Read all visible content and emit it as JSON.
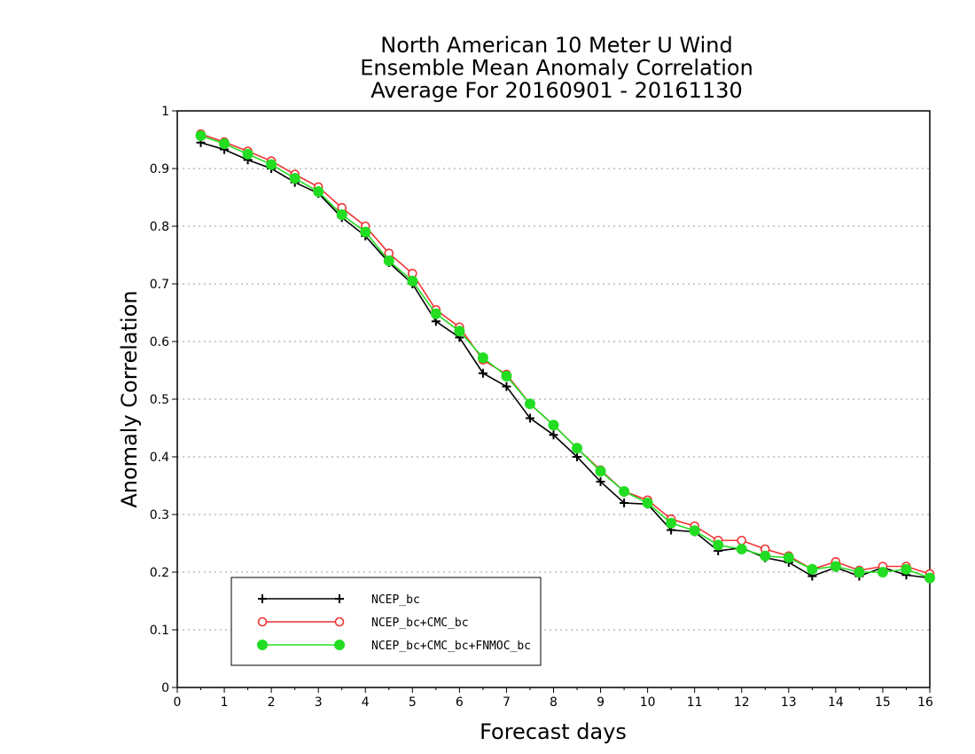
{
  "chart_data": {
    "type": "line",
    "title": [
      "North American 10 Meter U Wind",
      "Ensemble Mean Anomaly Correlation",
      "Average For 20160901 - 20161130"
    ],
    "xlabel": "Forecast days",
    "ylabel": "Anomaly Correlation",
    "xlim": [
      0,
      16
    ],
    "ylim": [
      0,
      1
    ],
    "xticks": [
      0,
      1,
      2,
      3,
      4,
      5,
      6,
      7,
      8,
      9,
      10,
      11,
      12,
      13,
      14,
      15,
      16
    ],
    "yticks": [
      0,
      0.1,
      0.2,
      0.3,
      0.4,
      0.5,
      0.6,
      0.7,
      0.8,
      0.9,
      1
    ],
    "ytick_labels": [
      "0",
      "0.1",
      "0.2",
      "0.3",
      "0.4",
      "0.5",
      "0.6",
      "0.7",
      "0.8",
      "0.9",
      "1"
    ],
    "grid": "horizontal dotted",
    "legend_position": "bottom-left",
    "x": [
      0.5,
      1,
      1.5,
      2,
      2.5,
      3,
      3.5,
      4,
      4.5,
      5,
      5.5,
      6,
      6.5,
      7,
      7.5,
      8,
      8.5,
      9,
      9.5,
      10,
      10.5,
      11,
      11.5,
      12,
      12.5,
      13,
      13.5,
      14,
      14.5,
      15,
      15.5,
      16
    ],
    "series": [
      {
        "name": "NCEP_bc",
        "color": "#000000",
        "marker": "plus",
        "values": [
          0.945,
          0.933,
          0.915,
          0.9,
          0.876,
          0.857,
          0.815,
          0.783,
          0.737,
          0.7,
          0.635,
          0.607,
          0.545,
          0.522,
          0.467,
          0.438,
          0.4,
          0.357,
          0.32,
          0.318,
          0.273,
          0.27,
          0.237,
          0.242,
          0.225,
          0.217,
          0.193,
          0.208,
          0.193,
          0.208,
          0.195,
          0.19
        ]
      },
      {
        "name": "NCEP_bc+CMC_bc",
        "color": "#ee3333",
        "marker": "open-circle",
        "values": [
          0.96,
          0.946,
          0.93,
          0.913,
          0.89,
          0.868,
          0.832,
          0.8,
          0.753,
          0.718,
          0.655,
          0.625,
          0.568,
          0.543,
          0.492,
          0.455,
          0.415,
          0.377,
          0.34,
          0.325,
          0.292,
          0.28,
          0.255,
          0.255,
          0.24,
          0.228,
          0.205,
          0.218,
          0.203,
          0.21,
          0.21,
          0.197
        ]
      },
      {
        "name": "NCEP_bc+CMC_bc+FNMOC_bc",
        "color": "#22dd22",
        "marker": "filled-circle",
        "values": [
          0.957,
          0.943,
          0.925,
          0.907,
          0.883,
          0.86,
          0.82,
          0.79,
          0.74,
          0.705,
          0.648,
          0.618,
          0.572,
          0.54,
          0.492,
          0.455,
          0.415,
          0.375,
          0.34,
          0.32,
          0.285,
          0.272,
          0.247,
          0.24,
          0.228,
          0.225,
          0.205,
          0.21,
          0.2,
          0.2,
          0.205,
          0.19
        ]
      }
    ]
  }
}
